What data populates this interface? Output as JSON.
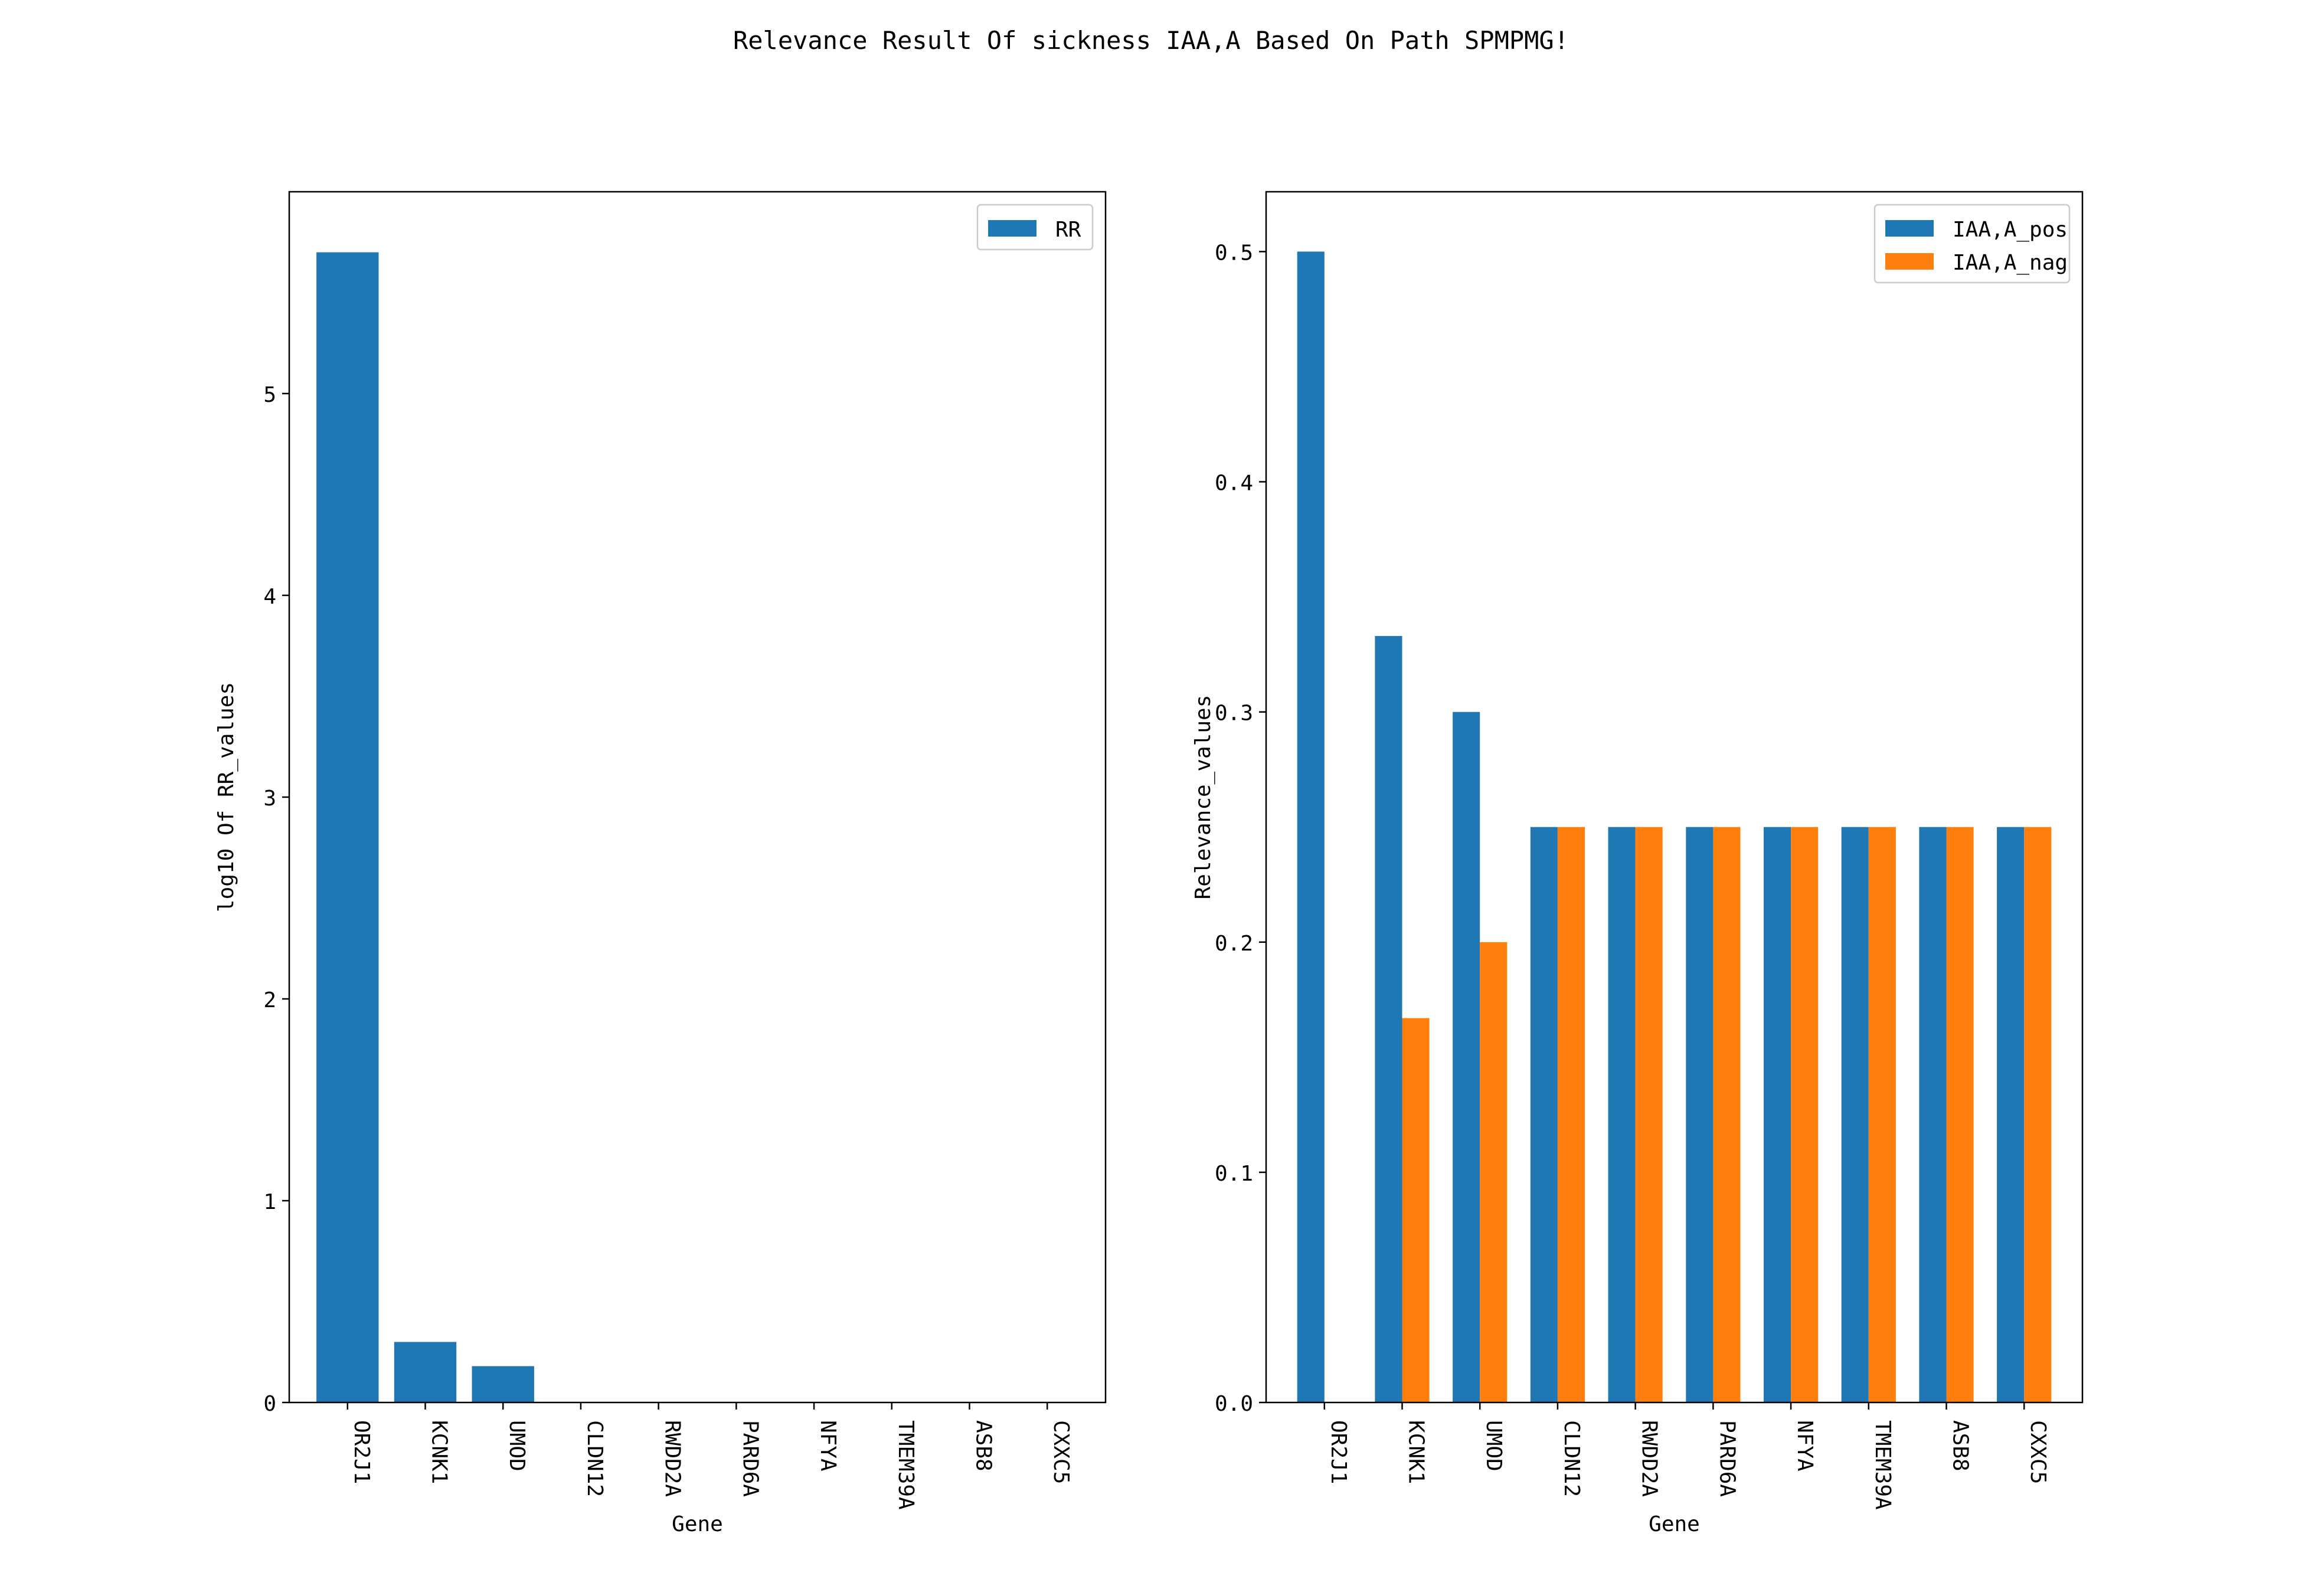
{
  "figure": {
    "title": "Relevance Result Of sickness IAA,A Based On Path SPMPMG!"
  },
  "chart_data": [
    {
      "type": "bar",
      "xlabel": "Gene",
      "ylabel": "log10 Of RR_values",
      "categories": [
        "OR2J1",
        "KCNK1",
        "UMOD",
        "CLDN12",
        "RWDD2A",
        "PARD6A",
        "NFYA",
        "TMEM39A",
        "ASB8",
        "CXXC5"
      ],
      "series": [
        {
          "name": "RR",
          "color": "#1f77b4",
          "values": [
            5.7,
            0.3,
            0.18,
            0,
            0,
            0,
            0,
            0,
            0,
            0
          ]
        }
      ],
      "ylim": [
        0,
        6
      ],
      "yticks": [
        0,
        1,
        2,
        3,
        4,
        5
      ],
      "yticklabels": [
        "0",
        "1",
        "2",
        "3",
        "4",
        "5"
      ],
      "legend": "top-right",
      "grid": false
    },
    {
      "type": "bar",
      "xlabel": "Gene",
      "ylabel": "Relevance_values",
      "categories": [
        "OR2J1",
        "KCNK1",
        "UMOD",
        "CLDN12",
        "RWDD2A",
        "PARD6A",
        "NFYA",
        "TMEM39A",
        "ASB8",
        "CXXC5"
      ],
      "series": [
        {
          "name": "IAA,A_pos",
          "color": "#1f77b4",
          "values": [
            0.5,
            0.333,
            0.3,
            0.25,
            0.25,
            0.25,
            0.25,
            0.25,
            0.25,
            0.25
          ]
        },
        {
          "name": "IAA,A_nag",
          "color": "#ff7f0e",
          "values": [
            0,
            0.167,
            0.2,
            0.25,
            0.25,
            0.25,
            0.25,
            0.25,
            0.25,
            0.25
          ]
        }
      ],
      "ylim": [
        0,
        0.526
      ],
      "yticks": [
        0,
        0.1,
        0.2,
        0.3,
        0.4,
        0.5
      ],
      "yticklabels": [
        "0.0",
        "0.1",
        "0.2",
        "0.3",
        "0.4",
        "0.5"
      ],
      "legend": "top-right",
      "grid": false
    }
  ]
}
